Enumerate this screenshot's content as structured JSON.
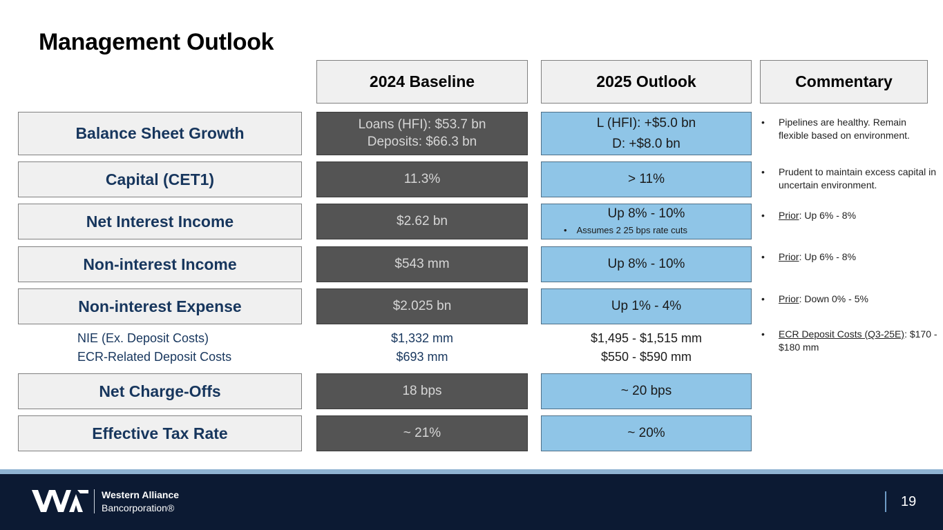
{
  "title": "Management Outlook",
  "columns": {
    "baseline": "2024 Baseline",
    "outlook": "2025 Outlook",
    "commentary": "Commentary"
  },
  "rows": [
    {
      "label": "Balance Sheet Growth",
      "baseline": [
        "Loans (HFI): $53.7 bn",
        "Deposits: $66.3 bn"
      ],
      "outlook": [
        "L (HFI): +$5.0 bn",
        "D: +$8.0 bn"
      ],
      "commentary": {
        "text": "Pipelines are healthy. Remain flexible based on environment."
      }
    },
    {
      "label": "Capital (CET1)",
      "baseline": [
        "11.3%"
      ],
      "outlook": [
        "> 11%"
      ],
      "commentary": {
        "text": "Prudent to maintain excess capital in uncertain environment."
      }
    },
    {
      "label": "Net Interest Income",
      "baseline": [
        "$2.62 bn"
      ],
      "outlook": [
        "Up 8% - 10%"
      ],
      "outlook_note": "Assumes 2 25 bps rate cuts",
      "commentary": {
        "prefix": "Prior",
        "text": ": Up 6% - 8%"
      }
    },
    {
      "label": "Non-interest Income",
      "baseline": [
        "$543 mm"
      ],
      "outlook": [
        "Up 8% - 10%"
      ],
      "commentary": {
        "prefix": "Prior",
        "text": ": Up 6% - 8%"
      }
    },
    {
      "label": "Non-interest Expense",
      "baseline": [
        "$2.025 bn"
      ],
      "outlook": [
        "Up 1% - 4%"
      ],
      "commentary": {
        "prefix": "Prior",
        "text": ": Down 0% - 5%"
      }
    },
    {
      "label": "Net Charge-Offs",
      "baseline": [
        "18 bps"
      ],
      "outlook": [
        "~ 20 bps"
      ]
    },
    {
      "label": "Effective Tax Rate",
      "baseline": [
        "~ 21%"
      ],
      "outlook": [
        "~ 20%"
      ]
    }
  ],
  "nie_breakdown": {
    "labels": [
      "NIE (Ex. Deposit Costs)",
      "ECR-Related Deposit Costs"
    ],
    "baseline": [
      "$1,332 mm",
      "$693 mm"
    ],
    "outlook": [
      "$1,495 - $1,515 mm",
      "$550 - $590 mm"
    ],
    "commentary": {
      "prefix": "ECR Deposit Costs (Q3-25E)",
      "text": ": $170 - $180 mm"
    }
  },
  "footer": {
    "company_line1": "Western Alliance",
    "company_line2": "Bancorporation®",
    "page_number": "19",
    "logo_icon": "wa-logo-icon"
  },
  "colors": {
    "navy": "#17365d",
    "baseline_fill": "#545454",
    "outlook_fill": "#8fc5e7",
    "footer_bg": "#0c1a33"
  }
}
